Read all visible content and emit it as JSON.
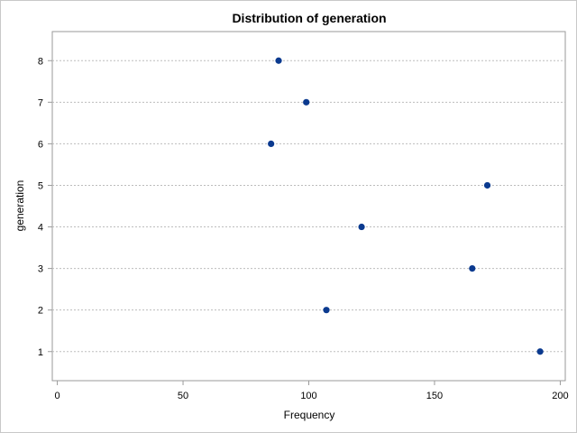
{
  "chart_data": {
    "type": "scatter",
    "title": "Distribution of generation",
    "xlabel": "Frequency",
    "ylabel": "generation",
    "xlim": [
      -2,
      202
    ],
    "ylim": [
      0.3,
      8.7
    ],
    "x_ticks": [
      0,
      50,
      100,
      150,
      200
    ],
    "y_ticks": [
      1,
      2,
      3,
      4,
      5,
      6,
      7,
      8
    ],
    "grid": "horizontal dashed",
    "marker_color": "#0b3a8f",
    "points": [
      {
        "x": 192,
        "y": 1
      },
      {
        "x": 107,
        "y": 2
      },
      {
        "x": 165,
        "y": 3
      },
      {
        "x": 121,
        "y": 4
      },
      {
        "x": 171,
        "y": 5
      },
      {
        "x": 85,
        "y": 6
      },
      {
        "x": 99,
        "y": 7
      },
      {
        "x": 88,
        "y": 8
      }
    ]
  }
}
